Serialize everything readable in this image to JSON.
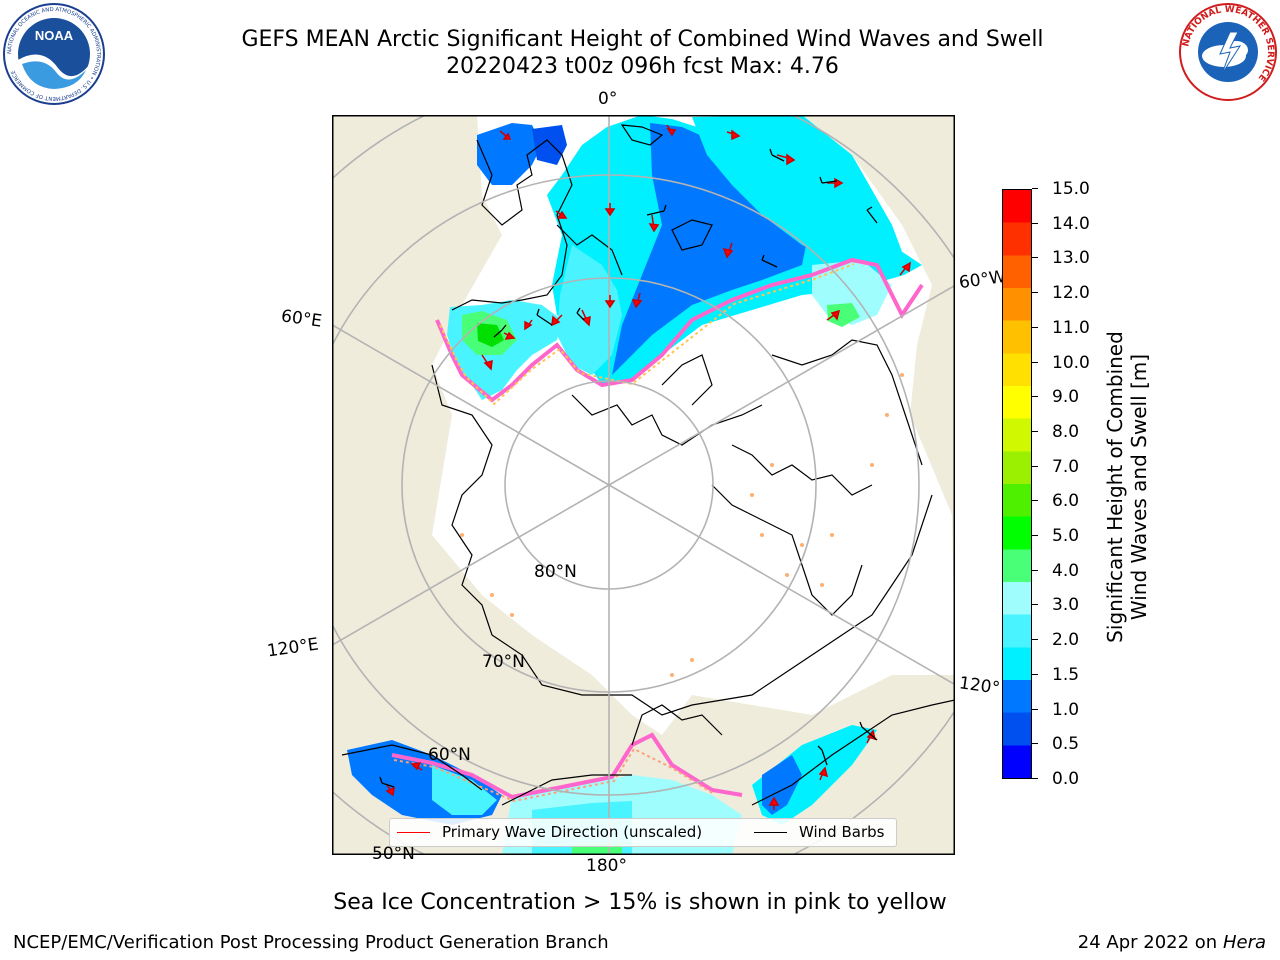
{
  "title": {
    "line1": "GEFS MEAN Arctic Significant Height of Combined Wind Waves and Swell",
    "line2": "20220423 t00z 096h fcst   Max: 4.76"
  },
  "map_labels": {
    "lon_0": "0°",
    "lon_60e": "60°E",
    "lon_120e": "120°E",
    "lon_180": "180°",
    "lon_120w": "120°",
    "lon_60w": "60°W",
    "lat_80": "80°N",
    "lat_70": "70°N",
    "lat_60": "60°N",
    "lat_50": "50°N"
  },
  "colorbar": {
    "label_line1": "Significant Height of Combined",
    "label_line2": "Wind Waves and Swell [m]",
    "ticks": [
      "0.0",
      "0.5",
      "1.0",
      "1.5",
      "2.0",
      "3.0",
      "4.0",
      "5.0",
      "6.0",
      "7.0",
      "8.0",
      "9.0",
      "10.0",
      "11.0",
      "12.0",
      "13.0",
      "14.0",
      "15.0"
    ],
    "colors": [
      "#0000ff",
      "#0050f0",
      "#0078ff",
      "#00f0ff",
      "#49f3ff",
      "#a0fdfd",
      "#49ff78",
      "#00ff00",
      "#4ef000",
      "#9af000",
      "#d0f800",
      "#ffff00",
      "#ffe000",
      "#ffc000",
      "#ff9000",
      "#ff6000",
      "#ff3000",
      "#ff0000"
    ]
  },
  "legend": {
    "primary_wave": "Primary Wave Direction (unscaled)",
    "wind_barbs": "Wind Barbs",
    "primary_wave_color": "#ff0000",
    "wind_barbs_color": "#000000"
  },
  "footnote": "Sea Ice Concentration > 15% is shown in pink to yellow",
  "credit": "NCEP/EMC/Verification Post Processing Product Generation Branch",
  "date_text": "24 Apr 2022 on ",
  "date_host": "Hera",
  "logos": {
    "noaa_text": "NOAA",
    "noaa_ring": "NATIONAL OCEANIC AND ATMOSPHERIC ADMINISTRATION • U.S. DEPARTMENT OF COMMERCE",
    "nws_ring": "NATIONAL WEATHER SERVICE"
  },
  "colors": {
    "land": "#efecdc",
    "ocean_ice": "#ffffff",
    "graticule": "#b3b3b3",
    "ice_edge": "#ff66cc"
  }
}
